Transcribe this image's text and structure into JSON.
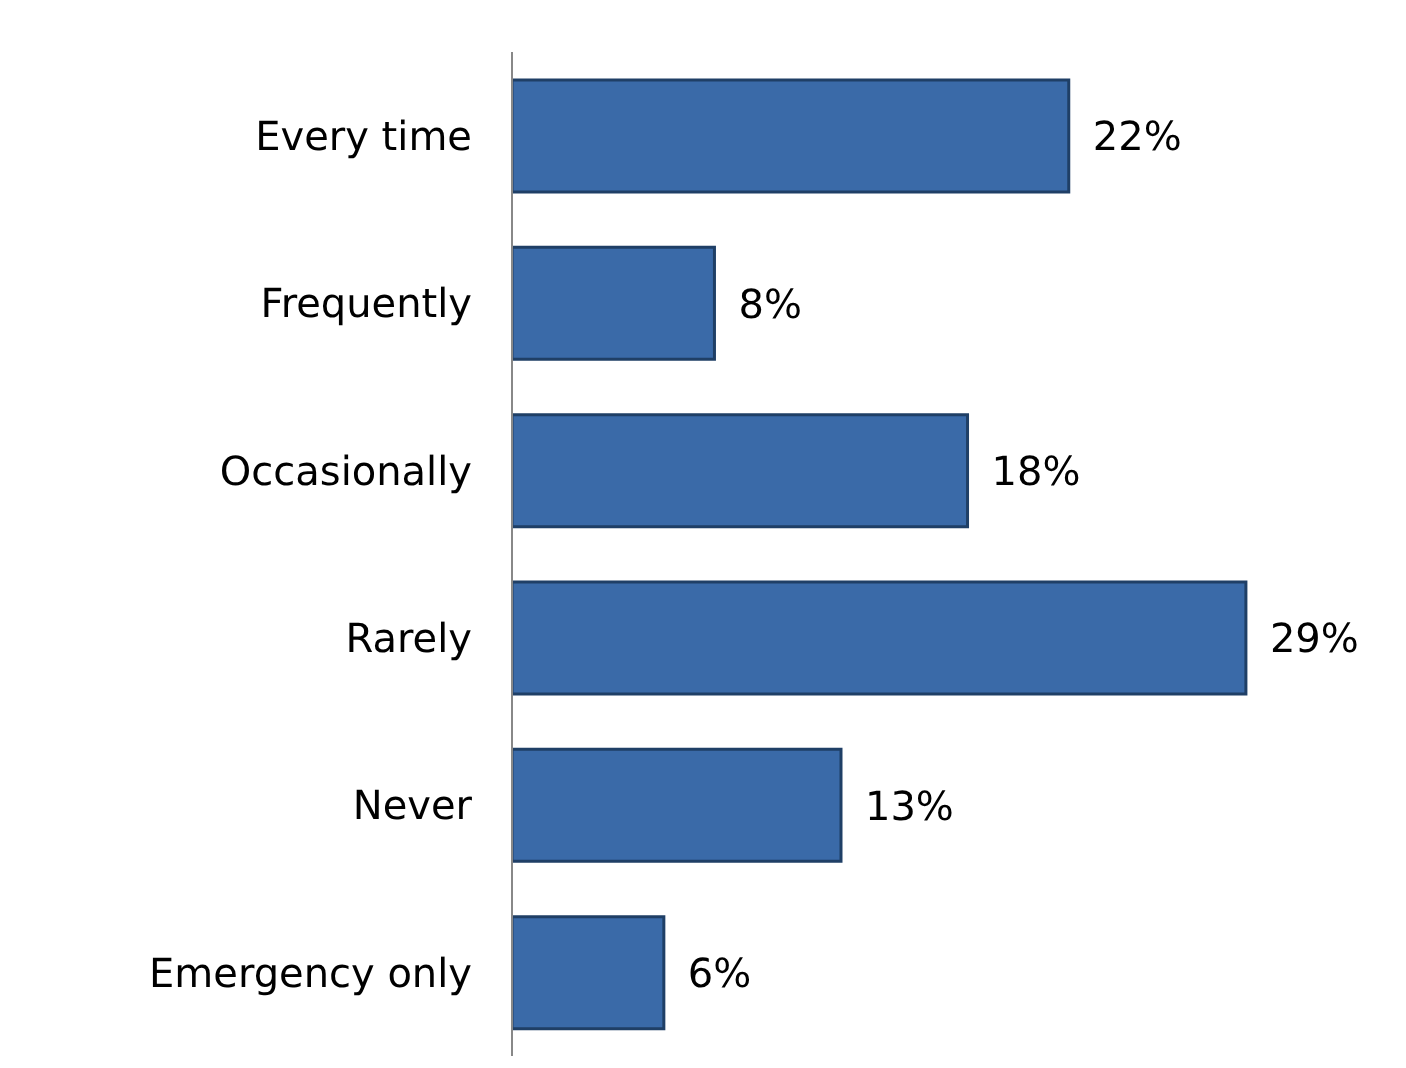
{
  "chart_data": {
    "type": "bar",
    "orientation": "horizontal",
    "categories": [
      "Every time",
      "Frequently",
      "Occasionally",
      "Rarely",
      "Never",
      "Emergency only"
    ],
    "values": [
      22,
      8,
      18,
      29,
      13,
      6
    ],
    "color": "#3a6aa8",
    "data_labels": true,
    "value_labels": [
      "22%",
      "8%",
      "18%",
      "29%",
      "13%",
      "6%"
    ]
  }
}
